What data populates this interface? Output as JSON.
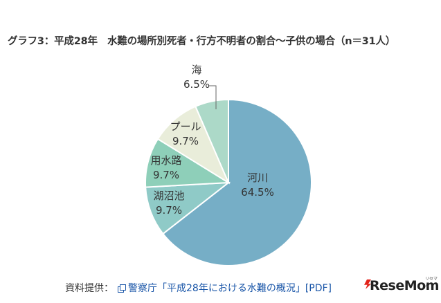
{
  "title": "グラフ3：平成28年　水難の場所別死者・行方不明者の割合〜子供の場合（n＝31人）",
  "chart_data": {
    "type": "pie",
    "title": "グラフ3：平成28年　水難の場所別死者・行方不明者の割合〜子供の場合（n＝31人）",
    "slices": [
      {
        "label": "河川",
        "value": 64.5,
        "value_label": "64.5%",
        "color": "#76aec6"
      },
      {
        "label": "湖沼池",
        "value": 9.7,
        "value_label": "9.7%",
        "color": "#8fcac7"
      },
      {
        "label": "用水路",
        "value": 9.7,
        "value_label": "9.7%",
        "color": "#8ecfb9"
      },
      {
        "label": "プール",
        "value": 9.7,
        "value_label": "9.7%",
        "color": "#e9edda"
      },
      {
        "label": "海",
        "value": 6.5,
        "value_label": "6.5%",
        "color": "#acd9c8"
      }
    ],
    "start": "12 o'clock",
    "direction": "clockwise"
  },
  "source": {
    "prefix": "資料提供：",
    "link_text": "警察庁「平成28年における水難の概況」[PDF]"
  },
  "logo": {
    "wordmark": "ReseMom",
    "kana": "リセマム"
  }
}
